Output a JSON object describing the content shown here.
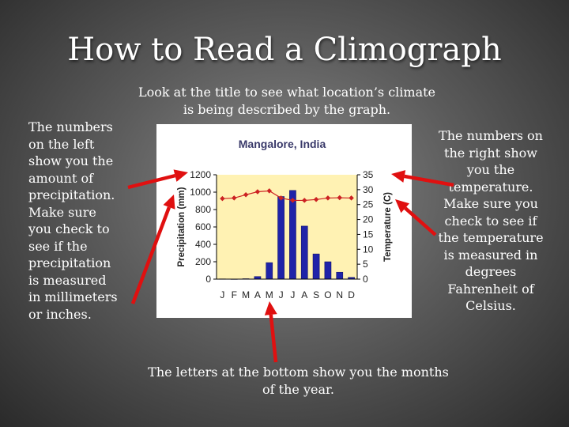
{
  "slide": {
    "title": "How to Read a Climograph",
    "note_top": "Look at the title to see what location’s climate is being described by the graph.",
    "note_left": "The numbers on the left show you the amount of precipitation. Make sure you check to see if the precipitation is measured in millimeters or inches.",
    "note_right": "The numbers on the right show you the temperature. Make sure you check to see if the temperature is measured in degrees Fahrenheit of Celsius.",
    "note_bottom": "The letters at the bottom show you the months of the year."
  },
  "colors": {
    "plot_bg": "#fff2b3",
    "bar": "#1f23a8",
    "line": "#cc2222",
    "arrow": "#e01010",
    "title_text": "#3a3a6a"
  },
  "chart_data": {
    "type": "bar",
    "title": "Mangalore, India",
    "ylabel": "Precipitation (mm)",
    "y2label": "Temperature (C)",
    "categories": [
      "J",
      "F",
      "M",
      "A",
      "M",
      "J",
      "J",
      "A",
      "S",
      "O",
      "N",
      "D"
    ],
    "ylim": [
      0,
      1200
    ],
    "yticks": [
      0,
      200,
      400,
      600,
      800,
      1000,
      1200
    ],
    "y2lim": [
      0,
      35
    ],
    "y2ticks": [
      0,
      5,
      10,
      15,
      20,
      25,
      30,
      35
    ],
    "grid": false,
    "series": [
      {
        "kind": "bar",
        "axis": "left",
        "values": [
          3,
          2,
          5,
          30,
          190,
          950,
          1020,
          610,
          290,
          200,
          80,
          20
        ]
      },
      {
        "kind": "line",
        "axis": "right",
        "values": [
          27,
          27.2,
          28.3,
          29.3,
          29.6,
          27.2,
          26.4,
          26.4,
          26.7,
          27.2,
          27.3,
          27.2
        ]
      }
    ]
  }
}
